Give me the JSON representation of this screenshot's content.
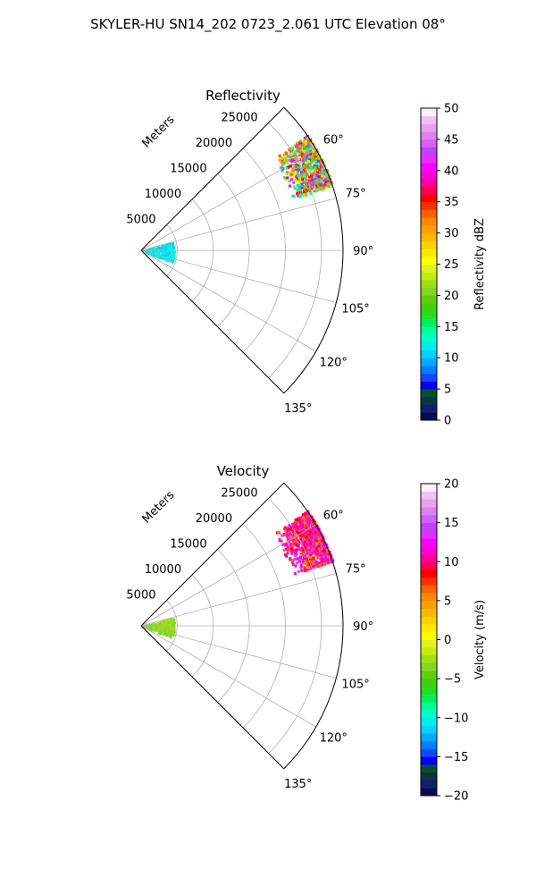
{
  "figure": {
    "suptitle": "SKYLER-HU  SN14_202  0723_2.061 UTC Elevation 08°"
  },
  "chart_data": [
    {
      "type": "heatmap",
      "title": "Reflectivity",
      "projection": "polar-sector",
      "radial_label": "Meters",
      "radial_ticks": [
        5000,
        10000,
        15000,
        20000,
        25000
      ],
      "r_max": 28000,
      "theta_range_deg": [
        45,
        135
      ],
      "theta_ticks": [
        60,
        75,
        90,
        105,
        120,
        135
      ],
      "theta_tick_labels": [
        "60°",
        "75°",
        "90°",
        "105°",
        "120°",
        "135°"
      ],
      "grid": true,
      "colorbar": {
        "label": "Reflectivity dBZ",
        "min": 0,
        "max": 50,
        "ticks": [
          0,
          5,
          10,
          15,
          20,
          25,
          30,
          35,
          40,
          45,
          50
        ],
        "tick_labels": [
          "0",
          "5",
          "10",
          "15",
          "20",
          "25",
          "30",
          "35",
          "40",
          "45",
          "50"
        ],
        "colors": [
          "#0a0a50",
          "#101f6e",
          "#0b3344",
          "#0b4d30",
          "#0000ff",
          "#1048ff",
          "#007fff",
          "#00aaff",
          "#00d4ff",
          "#00eeee",
          "#00ffcc",
          "#00ff99",
          "#00f060",
          "#20e020",
          "#40d010",
          "#60cc10",
          "#80d820",
          "#a0e010",
          "#c0ec10",
          "#e0f020",
          "#ffff00",
          "#ffe800",
          "#ffd000",
          "#ffb800",
          "#ffa000",
          "#ff8800",
          "#ff6000",
          "#ff3000",
          "#ff0000",
          "#ff0050",
          "#ff00a0",
          "#ff00d8",
          "#ff00ff",
          "#e030ff",
          "#c040ff",
          "#d060ff",
          "#e080f0",
          "#e8a0f0",
          "#f0c0f4",
          "#fff0ff"
        ]
      },
      "echoes": [
        {
          "name": "storm-core",
          "theta_center_deg": 63,
          "theta_halfwidth_deg": 8,
          "r_min": 22000,
          "r_max": 28000,
          "max_value": 45
        },
        {
          "name": "near-range-clutter",
          "theta_center_deg": 92,
          "theta_halfwidth_deg": 18,
          "r_min": 0,
          "r_max": 4500,
          "max_value": 13
        }
      ]
    },
    {
      "type": "heatmap",
      "title": "Velocity",
      "projection": "polar-sector",
      "radial_label": "Meters",
      "radial_ticks": [
        5000,
        10000,
        15000,
        20000,
        25000
      ],
      "r_max": 28000,
      "theta_range_deg": [
        45,
        135
      ],
      "theta_ticks": [
        60,
        75,
        90,
        105,
        120,
        135
      ],
      "theta_tick_labels": [
        "60°",
        "75°",
        "90°",
        "105°",
        "120°",
        "135°"
      ],
      "grid": true,
      "colorbar": {
        "label": "Velocity (m/s)",
        "min": -20,
        "max": 20,
        "ticks": [
          -20,
          -15,
          -10,
          -5,
          0,
          5,
          10,
          15,
          20
        ],
        "tick_labels": [
          "−20",
          "−15",
          "−10",
          "−5",
          "0",
          "5",
          "10",
          "15",
          "20"
        ],
        "colors": [
          "#0a0a50",
          "#101f6e",
          "#0b3344",
          "#0b4d30",
          "#0000ff",
          "#1048ff",
          "#007fff",
          "#00aaff",
          "#00d4ff",
          "#00eeee",
          "#00ffcc",
          "#00ff99",
          "#00f060",
          "#20e020",
          "#40d010",
          "#60cc10",
          "#80d820",
          "#a0e010",
          "#c0ec10",
          "#e0f020",
          "#ffff00",
          "#ffe800",
          "#ffd000",
          "#ffb800",
          "#ffa000",
          "#ff8800",
          "#ff6000",
          "#ff3000",
          "#ff0000",
          "#ff0050",
          "#ff00a0",
          "#ff00d8",
          "#ff00ff",
          "#e030ff",
          "#c040ff",
          "#d060ff",
          "#e080f0",
          "#e8a0f0",
          "#f0c0f4",
          "#fff0ff"
        ]
      },
      "echoes": [
        {
          "name": "storm-core",
          "theta_center_deg": 63,
          "theta_halfwidth_deg": 8,
          "r_min": 22000,
          "r_max": 28000,
          "min_value": 5,
          "max_value": 15
        },
        {
          "name": "near-range-clutter",
          "theta_center_deg": 92,
          "theta_halfwidth_deg": 18,
          "r_min": 0,
          "r_max": 4500,
          "value": -3
        }
      ]
    }
  ]
}
